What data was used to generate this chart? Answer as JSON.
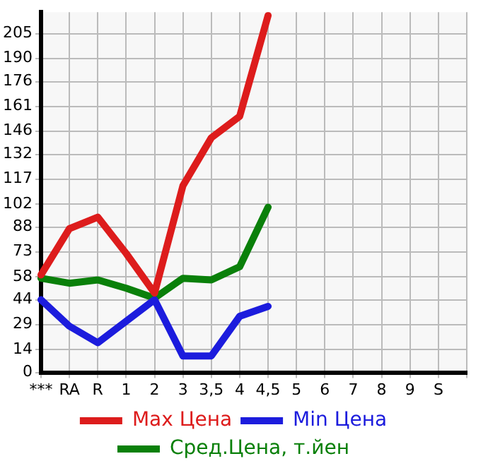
{
  "chart_data": {
    "type": "line",
    "categories": [
      "***",
      "RA",
      "R",
      "1",
      "2",
      "3",
      "3,5",
      "4",
      "4,5",
      "5",
      "6",
      "7",
      "8",
      "9",
      "S",
      null
    ],
    "series": [
      {
        "name": "Max Цена",
        "color": "#dd1c1c",
        "values": [
          59,
          87,
          94,
          72,
          48,
          113,
          142,
          155,
          216,
          null,
          null,
          null,
          null,
          null,
          null,
          null
        ]
      },
      {
        "name": "Min Цена",
        "color": "#1c1cdd",
        "values": [
          44,
          28,
          18,
          31,
          44,
          10,
          10,
          34,
          40,
          null,
          null,
          null,
          null,
          null,
          null,
          null
        ]
      },
      {
        "name": "Сред.Цена, т.йен",
        "color": "#0a800a",
        "values": [
          57,
          54,
          56,
          51,
          45,
          57,
          56,
          64,
          100,
          null,
          null,
          null,
          null,
          null,
          null,
          null
        ]
      }
    ],
    "ylim": [
      0,
      218
    ],
    "yticks": [
      0,
      14,
      29,
      44,
      58,
      73,
      88,
      102,
      117,
      132,
      146,
      161,
      176,
      190,
      205
    ],
    "grid": true,
    "legend": "bottom",
    "marker": "none",
    "line_style": "solid"
  }
}
